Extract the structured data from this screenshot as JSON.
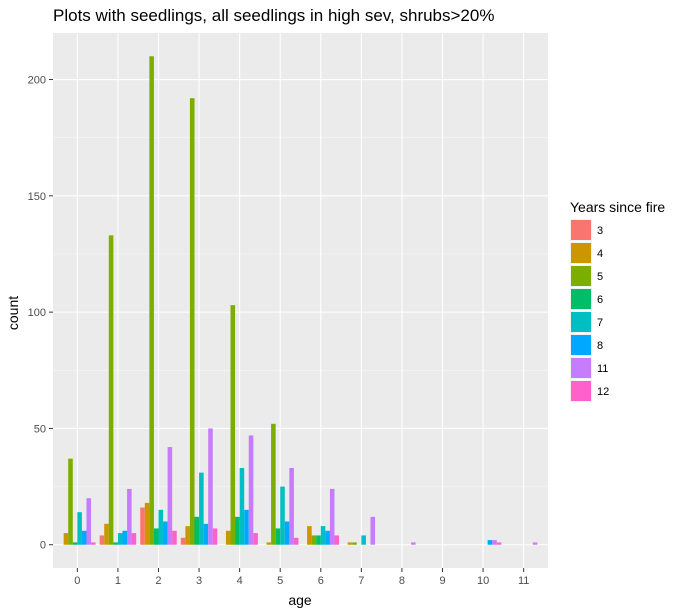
{
  "chart_data": {
    "type": "bar",
    "title": "Plots with seedlings, all seedlings in high sev, shrubs>20%",
    "xlabel": "age",
    "ylabel": "count",
    "x": [
      "0",
      "1",
      "2",
      "3",
      "4",
      "5",
      "6",
      "7",
      "8",
      "9",
      "10",
      "11"
    ],
    "ylim": [
      -10,
      220
    ],
    "yticks": [
      0,
      50,
      100,
      150,
      200
    ],
    "grid": true,
    "legend": {
      "title": "Years since fire",
      "placement": "right"
    },
    "series": [
      {
        "name": "3",
        "color": "#F8766D",
        "values": [
          null,
          4,
          16,
          3,
          null,
          null,
          null,
          null,
          null,
          null,
          null,
          null
        ]
      },
      {
        "name": "4",
        "color": "#CD9600",
        "values": [
          5,
          9,
          18,
          8,
          6,
          1,
          8,
          1,
          null,
          null,
          null,
          null
        ]
      },
      {
        "name": "5",
        "color": "#7CAE00",
        "values": [
          37,
          133,
          210,
          192,
          103,
          52,
          4,
          1,
          null,
          null,
          null,
          null
        ]
      },
      {
        "name": "6",
        "color": "#00BE67",
        "values": [
          1,
          1,
          7,
          12,
          12,
          7,
          4,
          null,
          null,
          null,
          null,
          null
        ]
      },
      {
        "name": "7",
        "color": "#00BFC4",
        "values": [
          14,
          5,
          15,
          31,
          33,
          25,
          8,
          4,
          null,
          null,
          null,
          null
        ]
      },
      {
        "name": "8",
        "color": "#00A9FF",
        "values": [
          6,
          6,
          10,
          9,
          15,
          10,
          6,
          null,
          null,
          null,
          2,
          null
        ]
      },
      {
        "name": "11",
        "color": "#C77CFF",
        "values": [
          20,
          24,
          42,
          50,
          47,
          33,
          24,
          12,
          1,
          null,
          2,
          1
        ]
      },
      {
        "name": "12",
        "color": "#FF61CC",
        "values": [
          1,
          5,
          6,
          7,
          5,
          3,
          4,
          null,
          null,
          null,
          1,
          null
        ]
      }
    ]
  }
}
